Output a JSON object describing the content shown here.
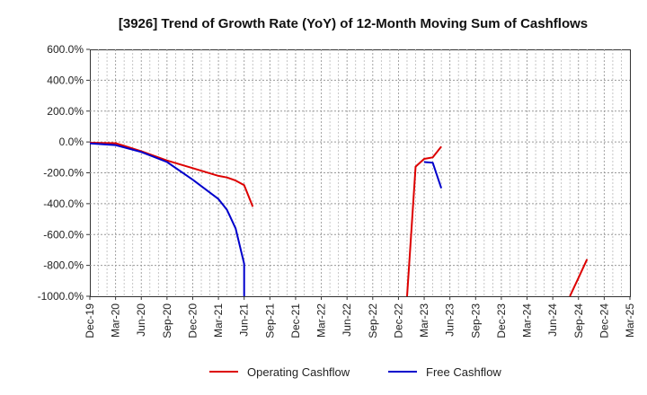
{
  "chart_data": {
    "type": "line",
    "title": "[3926]  Trend of Growth Rate (YoY) of 12-Month Moving Sum of Cashflows",
    "xlabel": "",
    "ylabel": "",
    "x_ticks": [
      "Dec-19",
      "Mar-20",
      "Jun-20",
      "Sep-20",
      "Dec-20",
      "Mar-21",
      "Jun-21",
      "Sep-21",
      "Dec-21",
      "Mar-22",
      "Jun-22",
      "Sep-22",
      "Dec-22",
      "Mar-23",
      "Jun-23",
      "Sep-23",
      "Dec-23",
      "Mar-24",
      "Jun-24",
      "Sep-24",
      "Dec-24",
      "Mar-25"
    ],
    "y_ticks": [
      "600.0%",
      "400.0%",
      "200.0%",
      "0.0%",
      "-200.0%",
      "-400.0%",
      "-600.0%",
      "-800.0%",
      "-1000.0%"
    ],
    "ylim": [
      -1000,
      600
    ],
    "y_unit": "%",
    "grid": true,
    "legend_position": "bottom",
    "series": [
      {
        "name": "Operating Cashflow",
        "color": "#dd0000",
        "segments": [
          [
            [
              "2019-12",
              -5
            ],
            [
              "2020-03",
              -8
            ],
            [
              "2020-06",
              -60
            ],
            [
              "2020-09",
              -120
            ],
            [
              "2020-12",
              -170
            ],
            [
              "2021-03",
              -220
            ],
            [
              "2021-04",
              -230
            ],
            [
              "2021-05",
              -250
            ],
            [
              "2021-06",
              -280
            ],
            [
              "2021-07",
              -420
            ]
          ],
          [
            [
              "2023-01",
              -1000
            ],
            [
              "2023-02",
              -160
            ],
            [
              "2023-03",
              -110
            ],
            [
              "2023-04",
              -100
            ],
            [
              "2023-05",
              -30
            ]
          ],
          [
            [
              "2024-08",
              -1000
            ],
            [
              "2024-09",
              -880
            ],
            [
              "2024-10",
              -760
            ]
          ]
        ]
      },
      {
        "name": "Free Cashflow",
        "color": "#0000cc",
        "segments": [
          [
            [
              "2019-12",
              -10
            ],
            [
              "2020-03",
              -20
            ],
            [
              "2020-06",
              -65
            ],
            [
              "2020-09",
              -130
            ],
            [
              "2020-12",
              -245
            ],
            [
              "2021-03",
              -370
            ],
            [
              "2021-04",
              -440
            ],
            [
              "2021-05",
              -560
            ],
            [
              "2021-06",
              -790
            ],
            [
              "2021-06",
              -1000
            ]
          ],
          [
            [
              "2023-03",
              -130
            ],
            [
              "2023-04",
              -135
            ],
            [
              "2023-05",
              -300
            ]
          ]
        ]
      }
    ]
  }
}
